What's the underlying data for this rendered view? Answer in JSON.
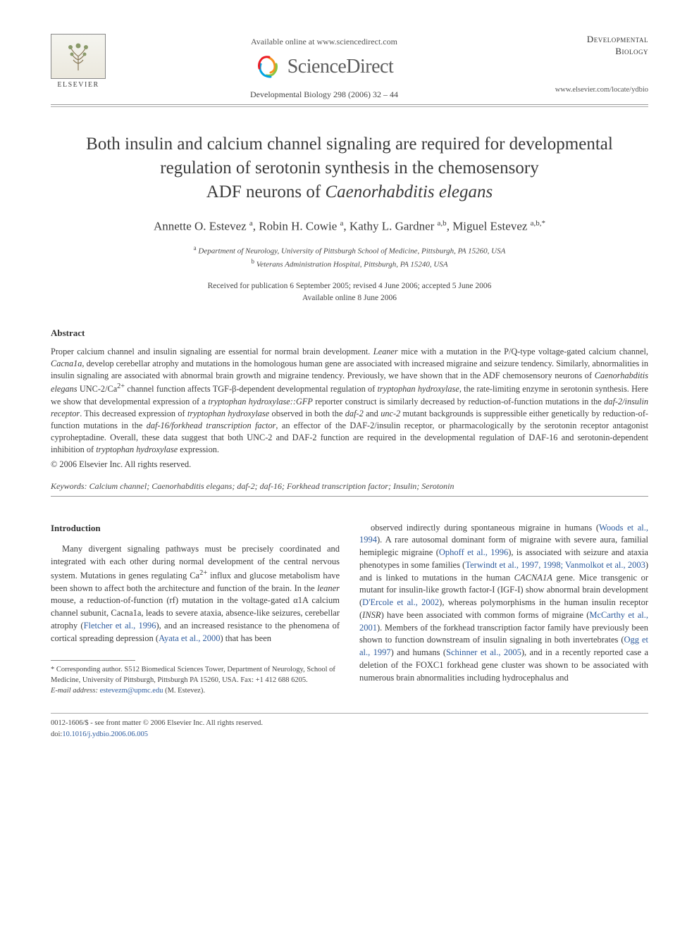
{
  "header": {
    "elsevier_label": "ELSEVIER",
    "available_online": "Available online at www.sciencedirect.com",
    "sd_brand": "ScienceDirect",
    "citation": "Developmental Biology 298 (2006) 32 – 44",
    "journal_name_line1": "Developmental",
    "journal_name_line2": "Biology",
    "journal_url": "www.elsevier.com/locate/ydbio"
  },
  "title": {
    "line1": "Both insulin and calcium channel signaling are required for developmental",
    "line2": "regulation of serotonin synthesis in the chemosensory",
    "line3_prefix": "ADF neurons of ",
    "line3_italic": "Caenorhabditis elegans"
  },
  "authors": {
    "a1_name": "Annette O. Estevez",
    "a1_aff": "a",
    "a2_name": "Robin H. Cowie",
    "a2_aff": "a",
    "a3_name": "Kathy L. Gardner",
    "a3_aff": "a,b",
    "a4_name": "Miguel Estevez",
    "a4_aff": "a,b,",
    "a4_corr": "*"
  },
  "affiliations": {
    "a": "Department of Neurology, University of Pittsburgh School of Medicine, Pittsburgh, PA 15260, USA",
    "b": "Veterans Administration Hospital, Pittsburgh, PA 15240, USA"
  },
  "dates": {
    "received": "Received for publication 6 September 2005; revised 4 June 2006; accepted 5 June 2006",
    "available": "Available online 8 June 2006"
  },
  "abstract": {
    "heading": "Abstract",
    "body_html": "Proper calcium channel and insulin signaling are essential for normal brain development. <span class=\"italic\">Leaner</span> mice with a mutation in the P/Q-type voltage-gated calcium channel, <span class=\"italic\">Cacna1a</span>, develop cerebellar atrophy and mutations in the homologous human gene are associated with increased migraine and seizure tendency. Similarly, abnormalities in insulin signaling are associated with abnormal brain growth and migraine tendency. Previously, we have shown that in the ADF chemosensory neurons of <span class=\"italic\">Caenorhabditis elegans</span> UNC-2/Ca<sup>2+</sup> channel function affects TGF-β-dependent developmental regulation of <span class=\"italic\">tryptophan hydroxylase</span>, the rate-limiting enzyme in serotonin synthesis. Here we show that developmental expression of a <span class=\"italic\">tryptophan hydroxylase::GFP</span> reporter construct is similarly decreased by reduction-of-function mutations in the <span class=\"italic\">daf-2/insulin receptor</span>. This decreased expression of <span class=\"italic\">tryptophan hydroxylase</span> observed in both the <span class=\"italic\">daf-2</span> and <span class=\"italic\">unc-2</span> mutant backgrounds is suppressible either genetically by reduction-of-function mutations in the <span class=\"italic\">daf-16/forkhead transcription factor</span>, an effector of the DAF-2/insulin receptor, or pharmacologically by the serotonin receptor antagonist cyproheptadine. Overall, these data suggest that both UNC-2 and DAF-2 function are required in the developmental regulation of DAF-16 and serotonin-dependent inhibition of <span class=\"italic\">tryptophan hydroxylase</span> expression.",
    "copyright": "© 2006 Elsevier Inc. All rights reserved."
  },
  "keywords": {
    "label": "Keywords:",
    "text": "Calcium channel; Caenorhabditis elegans; daf-2; daf-16; Forkhead transcription factor; Insulin; Serotonin"
  },
  "intro": {
    "heading": "Introduction",
    "col1_html": "Many divergent signaling pathways must be precisely coordinated and integrated with each other during normal development of the central nervous system. Mutations in genes regulating Ca<sup>2+</sup> influx and glucose metabolism have been shown to affect both the architecture and function of the brain. In the <span class=\"italic\">leaner</span> mouse, a reduction-of-function (rf) mutation in the voltage-gated α1A calcium channel subunit, Cacna1a, leads to severe ataxia, absence-like seizures, cerebellar atrophy (<span class=\"link\">Fletcher et al., 1996</span>), and an increased resistance to the phenomena of cortical spreading depression (<span class=\"link\">Ayata et al., 2000</span>) that has been",
    "col2_html": "observed indirectly during spontaneous migraine in humans (<span class=\"link\">Woods et al., 1994</span>). A rare autosomal dominant form of migraine with severe aura, familial hemiplegic migraine (<span class=\"link\">Ophoff et al., 1996</span>), is associated with seizure and ataxia phenotypes in some families (<span class=\"link\">Terwindt et al., 1997, 1998; Vanmolkot et al., 2003</span>) and is linked to mutations in the human <span class=\"italic\">CACNA1A</span> gene. Mice transgenic or mutant for insulin-like growth factor-I (IGF-I) show abnormal brain development (<span class=\"link\">D'Ercole et al., 2002</span>), whereas polymorphisms in the human insulin receptor (<span class=\"italic\">INSR</span>) have been associated with common forms of migraine (<span class=\"link\">McCarthy et al., 2001</span>). Members of the forkhead transcription factor family have previously been shown to function downstream of insulin signaling in both invertebrates (<span class=\"link\">Ogg et al., 1997</span>) and humans (<span class=\"link\">Schinner et al., 2005</span>), and in a recently reported case a deletion of the FOXC1 forkhead gene cluster was shown to be associated with numerous brain abnormalities including hydrocephalus and"
  },
  "footnote": {
    "corr": "* Corresponding author. S512 Biomedical Sciences Tower, Department of Neurology, School of Medicine, University of Pittsburgh, Pittsburgh PA 15260, USA. Fax: +1 412 688 6205.",
    "email_label": "E-mail address:",
    "email": "estevezm@upmc.edu",
    "email_suffix": "(M. Estevez)."
  },
  "bottom": {
    "issn": "0012-1606/$ - see front matter © 2006 Elsevier Inc. All rights reserved.",
    "doi_prefix": "doi:",
    "doi": "10.1016/j.ydbio.2006.06.005"
  },
  "colors": {
    "text": "#3a3a3a",
    "link": "#2e5c9e",
    "rule": "#999999",
    "sd_swirl1": "#f7921e",
    "sd_swirl2": "#8bc53f",
    "sd_swirl3": "#00a4e4",
    "sd_swirl4": "#ec1c24"
  }
}
